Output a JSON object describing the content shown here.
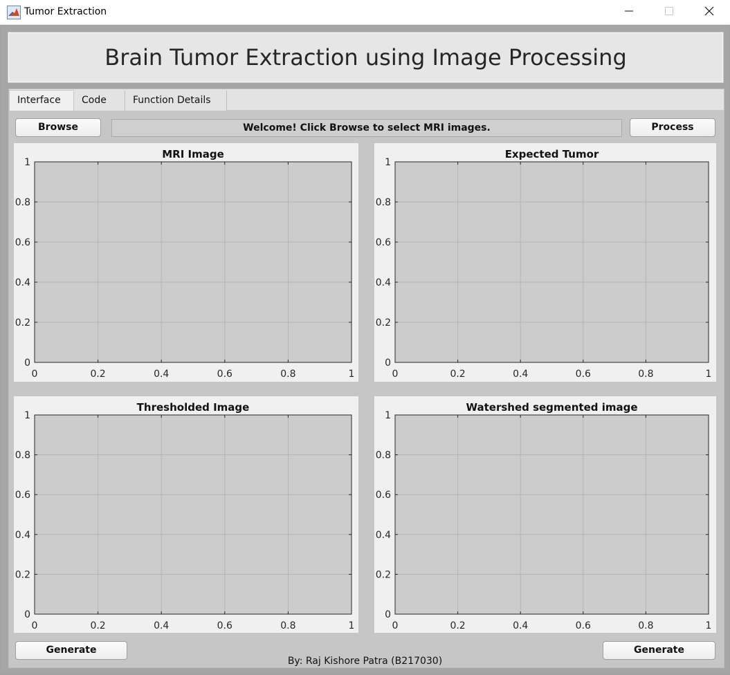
{
  "window": {
    "title": "Tumor Extraction",
    "app_icon": "matlab-icon",
    "controls": [
      "minimize-icon",
      "maximize-icon",
      "close-icon"
    ]
  },
  "header": {
    "title": "Brain Tumor Extraction using Image Processing"
  },
  "tabs": [
    {
      "label": "Interface",
      "active": true
    },
    {
      "label": "Code",
      "active": false
    },
    {
      "label": "Function Details",
      "active": false
    }
  ],
  "toolbar": {
    "browse_label": "Browse",
    "process_label": "Process",
    "status_text": "Welcome! Click Browse to select MRI images."
  },
  "footer": {
    "generate_left_label": "Generate",
    "generate_right_label": "Generate",
    "credit": "By: Raj Kishore Patra (B217030)"
  },
  "colors": {
    "plot_area": "#cccccc",
    "panel": "#f0f0f0",
    "tab_bg": "#c6c6c6",
    "grid": "#b4b4b4"
  },
  "chart_data": [
    {
      "type": "scatter",
      "title": "MRI Image",
      "xlabel": "",
      "ylabel": "",
      "x": [],
      "y": [],
      "xlim": [
        0,
        1
      ],
      "ylim": [
        0,
        1
      ],
      "xticks": [
        "0",
        "0.2",
        "0.4",
        "0.6",
        "0.8",
        "1"
      ],
      "yticks": [
        "0",
        "0.2",
        "0.4",
        "0.6",
        "0.8",
        "1"
      ],
      "grid": true
    },
    {
      "type": "scatter",
      "title": "Expected Tumor",
      "xlabel": "",
      "ylabel": "",
      "x": [],
      "y": [],
      "xlim": [
        0,
        1
      ],
      "ylim": [
        0,
        1
      ],
      "xticks": [
        "0",
        "0.2",
        "0.4",
        "0.6",
        "0.8",
        "1"
      ],
      "yticks": [
        "0",
        "0.2",
        "0.4",
        "0.6",
        "0.8",
        "1"
      ],
      "grid": true
    },
    {
      "type": "scatter",
      "title": "Thresholded Image",
      "xlabel": "",
      "ylabel": "",
      "x": [],
      "y": [],
      "xlim": [
        0,
        1
      ],
      "ylim": [
        0,
        1
      ],
      "xticks": [
        "0",
        "0.2",
        "0.4",
        "0.6",
        "0.8",
        "1"
      ],
      "yticks": [
        "0",
        "0.2",
        "0.4",
        "0.6",
        "0.8",
        "1"
      ],
      "grid": true
    },
    {
      "type": "scatter",
      "title": "Watershed segmented image",
      "xlabel": "",
      "ylabel": "",
      "x": [],
      "y": [],
      "xlim": [
        0,
        1
      ],
      "ylim": [
        0,
        1
      ],
      "xticks": [
        "0",
        "0.2",
        "0.4",
        "0.6",
        "0.8",
        "1"
      ],
      "yticks": [
        "0",
        "0.2",
        "0.4",
        "0.6",
        "0.8",
        "1"
      ],
      "grid": true
    }
  ]
}
